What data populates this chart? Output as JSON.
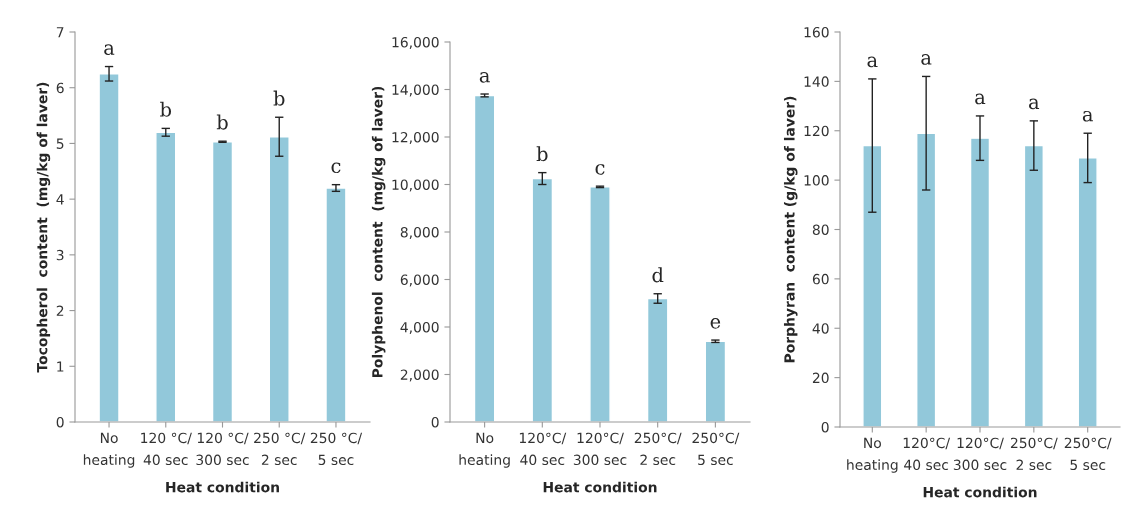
{
  "chart_data": [
    {
      "type": "bar",
      "ylabel": "Tocopherol  content  (mg/kg of laver)",
      "xlabel": "Heat condition",
      "categories": [
        "No\nheating",
        "120 °C/\n40 sec",
        "120 °C/\n300 sec",
        "250 °C/\n2 sec",
        "250 °C/\n5 sec"
      ],
      "values": [
        6.25,
        5.2,
        5.03,
        5.12,
        4.2
      ],
      "errors": [
        0.13,
        0.07,
        0.01,
        0.35,
        0.06
      ],
      "color": "#92c8da",
      "ylim": [
        0,
        7
      ],
      "yticks": [
        0,
        1,
        2,
        3,
        4,
        5,
        6,
        7
      ],
      "grid": false,
      "annotations": [
        "a",
        "b",
        "b",
        "b",
        "c"
      ]
    },
    {
      "type": "bar",
      "ylabel": "Polyphenol  content  (mg/kg of laver)",
      "xlabel": "Heat condition",
      "categories": [
        "No\nheating",
        "120°C/\n40 sec",
        "120°C/\n300 sec",
        "250°C/\n2 sec",
        "250°C/\n5 sec"
      ],
      "values": [
        13750,
        10250,
        9900,
        5200,
        3400
      ],
      "errors": [
        60,
        250,
        30,
        200,
        50
      ],
      "color": "#92c8da",
      "ylim": [
        0,
        16000
      ],
      "yticks": [
        0,
        {
          "value": 2000,
          "label": "2,000"
        },
        {
          "value": 4000,
          "label": "4,000"
        },
        {
          "value": 6000,
          "label": "6,000"
        },
        {
          "value": 8000,
          "label": "8,000"
        },
        {
          "value": 10000,
          "label": "10,000"
        },
        {
          "value": 12000,
          "label": "12,000"
        },
        {
          "value": 14000,
          "label": "14,000"
        },
        {
          "value": 16000,
          "label": "16,000"
        }
      ],
      "grid": false,
      "annotations": [
        "a",
        "b",
        "c",
        "d",
        "e"
      ]
    },
    {
      "type": "bar",
      "ylabel": "Porphyran  content (g/kg of laver)",
      "xlabel": "Heat condition",
      "categories": [
        "No\nheating",
        "120°C/\n40 sec",
        "120°C/\n300 sec",
        "250°C/\n2 sec",
        "250°C/\n5 sec"
      ],
      "values": [
        114,
        119,
        117,
        114,
        109
      ],
      "errors": [
        27,
        23,
        9,
        10,
        10
      ],
      "color": "#92c8da",
      "ylim": [
        0,
        160
      ],
      "yticks": [
        0,
        20,
        40,
        60,
        80,
        100,
        120,
        140,
        160
      ],
      "grid": false,
      "annotations": [
        "a",
        "a",
        "a",
        "a",
        "a"
      ]
    }
  ]
}
